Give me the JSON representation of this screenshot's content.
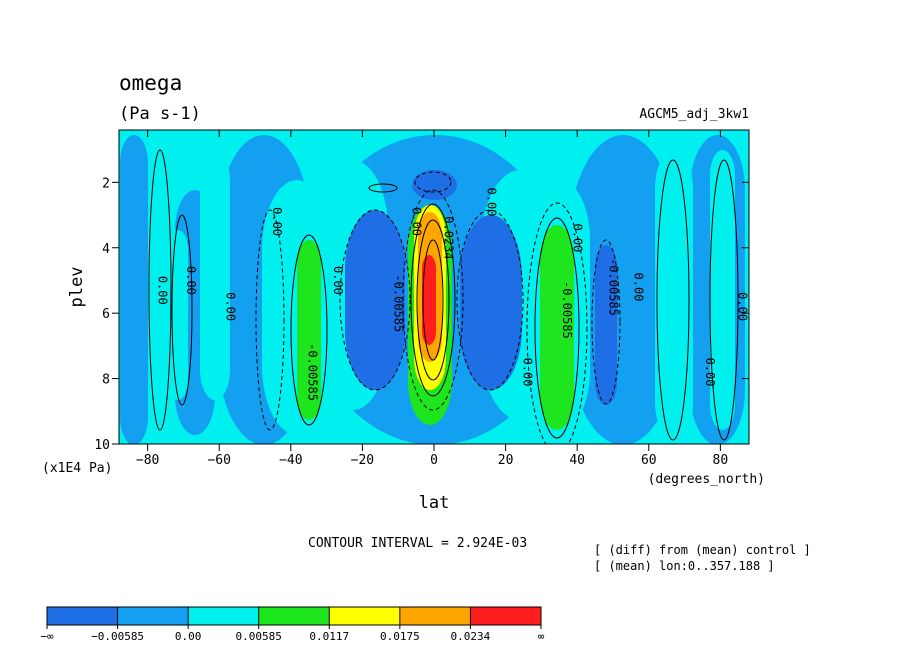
{
  "chart_data": {
    "type": "heatmap",
    "title": "omega",
    "units": "(Pa s-1)",
    "experiment": "AGCM5_adj_3kw1",
    "xlabel": "lat",
    "x_units": "(degrees_north)",
    "ylabel": "plev",
    "y_units": "(x1E4 Pa)",
    "xlim": [
      -88,
      88
    ],
    "ylim": [
      0.4,
      10
    ],
    "y_inverted": true,
    "x_ticks": [
      -80,
      -60,
      -40,
      -20,
      0,
      20,
      40,
      60,
      80
    ],
    "y_ticks": [
      2,
      4,
      6,
      8,
      10
    ],
    "x_tick_labels": [
      "−80",
      "−60",
      "−40",
      "−20",
      "0",
      "20",
      "40",
      "60",
      "80"
    ],
    "y_tick_labels": [
      "2",
      "4",
      "6",
      "8",
      "10"
    ],
    "contour_interval_text": "CONTOUR INTERVAL = 2.924E-03",
    "notes": [
      "[ (diff) from (mean) control ]",
      "[ (mean) lon:0..357.188 ]"
    ],
    "contour_labels": [
      {
        "text": "0.00",
        "lat": -77,
        "plev": 5.3
      },
      {
        "text": "0.00",
        "lat": -69,
        "plev": 5.0
      },
      {
        "text": "0.00",
        "lat": -58,
        "plev": 5.8
      },
      {
        "text": "0.00",
        "lat": -45,
        "plev": 3.2
      },
      {
        "text": "-0.00585",
        "lat": -35,
        "plev": 7.8
      },
      {
        "text": "0.00",
        "lat": -28,
        "plev": 5.0
      },
      {
        "text": "-0.00585",
        "lat": -11,
        "plev": 5.7
      },
      {
        "text": "0.00",
        "lat": -6,
        "plev": 3.2
      },
      {
        "text": "0.0234",
        "lat": 3,
        "plev": 3.7
      },
      {
        "text": "0.00",
        "lat": 15,
        "plev": 2.6
      },
      {
        "text": "0.00",
        "lat": 25,
        "plev": 7.8
      },
      {
        "text": "-0.00585",
        "lat": 36,
        "plev": 5.9
      },
      {
        "text": "0.00",
        "lat": 39,
        "plev": 3.7
      },
      {
        "text": "-0.00585",
        "lat": 49,
        "plev": 5.2
      },
      {
        "text": "0.00",
        "lat": 56,
        "plev": 5.2
      },
      {
        "text": "0.00",
        "lat": 76,
        "plev": 7.8
      },
      {
        "text": "0.00",
        "lat": 85,
        "plev": 5.8
      }
    ],
    "colorbar": {
      "colors": [
        "#1e6ee6",
        "#14a0f0",
        "#00f0f0",
        "#1ee61e",
        "#ffff00",
        "#ffa500",
        "#ff1e1e"
      ],
      "tick_labels": [
        "−∞",
        "−0.00585",
        "0.00",
        "0.00585",
        "0.0117",
        "0.0175",
        "0.0234",
        "∞"
      ]
    }
  }
}
